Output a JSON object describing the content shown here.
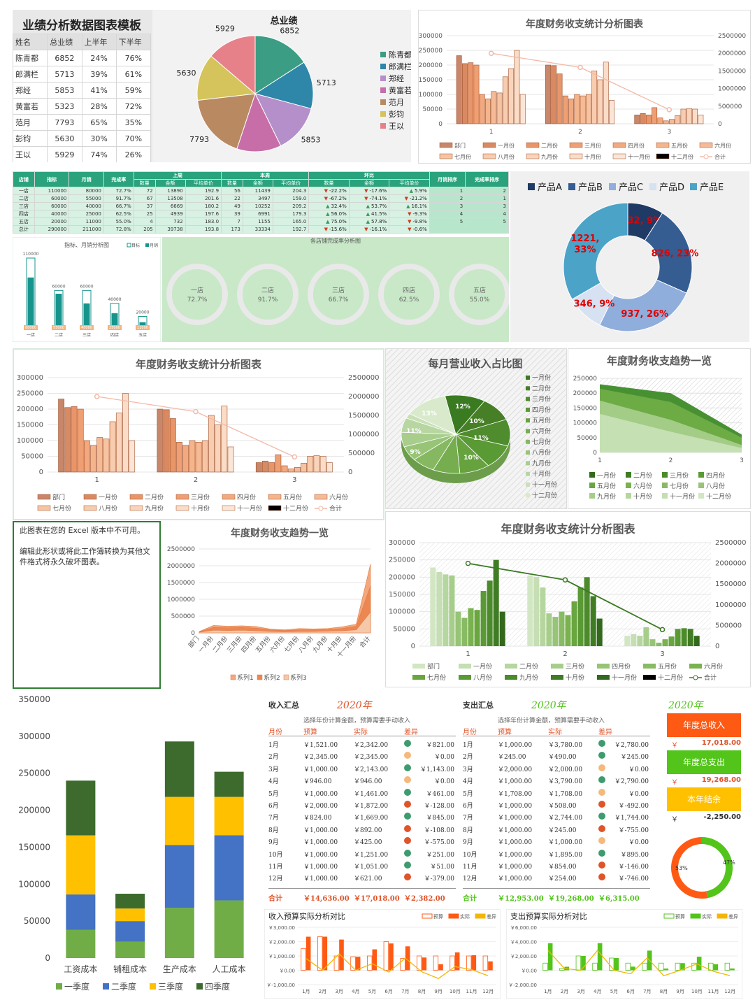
{
  "p1": {
    "title": "业绩分析数据图表模板",
    "headers": [
      "姓名",
      "总业绩",
      "上半年",
      "下半年"
    ],
    "rows": [
      [
        "陈青都",
        "6852",
        "24%",
        "76%"
      ],
      [
        "郎满栏",
        "5713",
        "39%",
        "61%"
      ],
      [
        "郑经",
        "5853",
        "41%",
        "59%"
      ],
      [
        "黄富若",
        "5323",
        "28%",
        "72%"
      ],
      [
        "范月",
        "7793",
        "65%",
        "35%"
      ],
      [
        "彭钧",
        "5630",
        "30%",
        "70%"
      ],
      [
        "王以",
        "5929",
        "74%",
        "26%"
      ]
    ],
    "pie_title": "总业绩",
    "colors": [
      "#3a9d84",
      "#2e86a8",
      "#b58fc9",
      "#c76ea8",
      "#b98a62",
      "#d5c35c",
      "#e6818a"
    ]
  },
  "p2": {
    "title": "年度财务收支统计分析图表",
    "legend": [
      "部门",
      "一月份",
      "二月份",
      "三月份",
      "四月份",
      "五月份",
      "六月份",
      "七月份",
      "八月份",
      "九月份",
      "十月份",
      "十一月份",
      "十二月份",
      "合计"
    ],
    "yleft": [
      "0",
      "50000",
      "100000",
      "150000",
      "200000",
      "250000",
      "300000"
    ],
    "yright": [
      "0",
      "500000",
      "1000000",
      "1500000",
      "2000000",
      "2500000"
    ],
    "xcats": [
      "1",
      "2",
      "3"
    ]
  },
  "p3": {
    "head1": [
      "店铺",
      "指标",
      "月销",
      "完成率",
      "上周",
      "本周",
      "环比",
      "月销排序",
      "完成率排序"
    ],
    "head2": [
      "数量",
      "金额",
      "平均单价",
      "数量",
      "金额",
      "平均单价",
      "数量",
      "金额",
      "平均单价"
    ],
    "rows": [
      [
        "一店",
        "110000",
        "80000",
        "72.7%",
        "72",
        "13890",
        "192.9",
        "56",
        "11439",
        "204.3",
        "-22.2%",
        "-17.6%",
        "5.9%",
        "1",
        "2"
      ],
      [
        "二店",
        "60000",
        "55000",
        "91.7%",
        "67",
        "13508",
        "201.6",
        "22",
        "3497",
        "159.0",
        "-67.2%",
        "-74.1%",
        "-21.2%",
        "2",
        "1"
      ],
      [
        "三店",
        "60000",
        "40000",
        "66.7%",
        "37",
        "6669",
        "180.2",
        "49",
        "10252",
        "209.2",
        "32.4%",
        "53.7%",
        "16.1%",
        "3",
        "3"
      ],
      [
        "四店",
        "40000",
        "25000",
        "62.5%",
        "25",
        "4939",
        "197.6",
        "39",
        "6991",
        "179.3",
        "56.0%",
        "41.5%",
        "-9.3%",
        "4",
        "4"
      ],
      [
        "五店",
        "20000",
        "11000",
        "55.0%",
        "4",
        "732",
        "183.0",
        "7",
        "1155",
        "165.0",
        "75.0%",
        "57.8%",
        "-9.8%",
        "5",
        "5"
      ],
      [
        "总计",
        "290000",
        "211000",
        "72.8%",
        "205",
        "39738",
        "193.8",
        "173",
        "33334",
        "192.7",
        "-15.6%",
        "-16.1%",
        "-0.6%",
        "",
        ""
      ]
    ],
    "bar_title": "指标、月销分析图",
    "bar_legend": [
      "目标",
      "月销"
    ],
    "stores": [
      "一店",
      "二店",
      "三店",
      "四店",
      "五店"
    ],
    "targets": [
      "110000",
      "60000",
      "60000",
      "40000",
      "20000"
    ],
    "sales": [
      "80000",
      "55000",
      "40000",
      "25000",
      "11000"
    ],
    "ring_title": "各店铺完成率分析图",
    "rings": [
      {
        "name": "一店",
        "pct": "72.7%",
        "v": 0.727,
        "color": "#17958d"
      },
      {
        "name": "二店",
        "pct": "91.7%",
        "v": 0.917,
        "color": "#ee7d31"
      },
      {
        "name": "三店",
        "pct": "66.7%",
        "v": 0.667,
        "color": "#8ccc4a"
      },
      {
        "name": "四店",
        "pct": "62.5%",
        "v": 0.625,
        "color": "#19d4c9"
      },
      {
        "name": "五店",
        "pct": "55.0%",
        "v": 0.55,
        "color": "#17a2d8"
      }
    ]
  },
  "p4": {
    "legend": [
      "产品A",
      "产品B",
      "产品C",
      "产品D",
      "产品E"
    ],
    "colors": [
      "#1f3a64",
      "#355d91",
      "#8faedb",
      "#d6e1f1",
      "#4ba3c8"
    ],
    "values": [
      332,
      826,
      937,
      346,
      1221
    ],
    "labels": [
      "332, 9%",
      "826, 23%",
      "937, 26%",
      "346, 9%",
      "1221, 33%"
    ]
  },
  "p6": {
    "title": "每月营业收入占比图",
    "legend": [
      "一月份",
      "二月份",
      "三月份",
      "四月份",
      "五月份",
      "六月份",
      "七月份",
      "八月份",
      "九月份",
      "十月份",
      "十一月份",
      "十二月份"
    ],
    "labels": [
      "12%",
      "10%",
      "11%",
      "10%",
      "9%",
      "11%",
      "13%"
    ]
  },
  "p7": {
    "title": "年度财务收支趋势一览",
    "yleft": [
      "0",
      "50000",
      "100000",
      "150000",
      "200000",
      "250000"
    ],
    "xcats": [
      "1",
      "2",
      "3"
    ],
    "legend": [
      "一月份",
      "二月份",
      "三月份",
      "四月份",
      "五月份",
      "六月份",
      "七月份",
      "八月份",
      "九月份",
      "十月份",
      "十一月份",
      "十二月份"
    ]
  },
  "p8": {
    "msg1": "此图表在您的 Excel 版本中不可用。",
    "msg2": "编辑此形状或将此工作簿转换为其他文件格式将永久破坏图表。"
  },
  "p9": {
    "title": "年度财务收支趋势一览",
    "yleft": [
      "0",
      "500000",
      "1000000",
      "1500000",
      "2000000",
      "2500000"
    ],
    "xcats": [
      "部门",
      "一月份",
      "二月份",
      "三月份",
      "四月份",
      "五月份",
      "六月份",
      "七月份",
      "八月份",
      "九月份",
      "十月份",
      "十一月份",
      "合计"
    ],
    "legend": [
      "系列1",
      "系列2",
      "系列3"
    ]
  },
  "p10": {
    "title": "年度财务收支统计分析图表"
  },
  "p11": {
    "cats": [
      "工资成本",
      "铺租成本",
      "生产成本",
      "人工成本"
    ],
    "series": [
      {
        "name": "一季度",
        "color": "#70ad47",
        "values": [
          38000,
          22000,
          68000,
          78000
        ]
      },
      {
        "name": "二季度",
        "color": "#4472c4",
        "values": [
          48000,
          28000,
          85000,
          88000
        ]
      },
      {
        "name": "三季度",
        "color": "#ffc000",
        "values": [
          80000,
          17000,
          65000,
          52000
        ]
      },
      {
        "name": "四季度",
        "color": "#3d6b2e",
        "values": [
          74000,
          20000,
          75000,
          34000
        ]
      }
    ],
    "yticks": [
      "0",
      "50000",
      "100000",
      "150000",
      "200000",
      "250000",
      "300000",
      "350000"
    ]
  },
  "p12": {
    "in_title": "收入汇总",
    "out_title": "支出汇总",
    "year": "2020年",
    "note": "选择年份计算金额，预算需要手动收入",
    "headers": [
      "月份",
      "预算",
      "实际",
      "差异"
    ],
    "months": [
      "1月",
      "2月",
      "3月",
      "4月",
      "5月",
      "6月",
      "7月",
      "8月",
      "9月",
      "10月",
      "11月",
      "12月"
    ],
    "income": [
      [
        "￥1,521.00",
        "￥2,342.00",
        "￥821.00",
        "g"
      ],
      [
        "￥2,345.00",
        "￥2,345.00",
        "￥0.00",
        "y"
      ],
      [
        "￥1,000.00",
        "￥2,143.00",
        "￥1,143.00",
        "g"
      ],
      [
        "￥946.00",
        "￥946.00",
        "￥0.00",
        "y"
      ],
      [
        "￥1,000.00",
        "￥1,461.00",
        "￥461.00",
        "g"
      ],
      [
        "￥2,000.00",
        "￥1,872.00",
        "￥-128.00",
        "r"
      ],
      [
        "￥824.00",
        "￥1,669.00",
        "￥845.00",
        "g"
      ],
      [
        "￥1,000.00",
        "￥892.00",
        "￥-108.00",
        "r"
      ],
      [
        "￥1,000.00",
        "￥425.00",
        "￥-575.00",
        "r"
      ],
      [
        "￥1,000.00",
        "￥1,251.00",
        "￥251.00",
        "g"
      ],
      [
        "￥1,000.00",
        "￥1,051.00",
        "￥51.00",
        "g"
      ],
      [
        "￥1,000.00",
        "￥621.00",
        "￥-379.00",
        "r"
      ]
    ],
    "in_total": [
      "合计",
      "￥14,636.00",
      "￥17,018.00",
      "￥2,382.00"
    ],
    "expense": [
      [
        "￥1,000.00",
        "￥3,780.00",
        "￥2,780.00",
        "g"
      ],
      [
        "￥245.00",
        "￥490.00",
        "￥245.00",
        "g"
      ],
      [
        "￥2,000.00",
        "￥2,000.00",
        "￥0.00",
        "y"
      ],
      [
        "￥1,000.00",
        "￥3,790.00",
        "￥2,790.00",
        "g"
      ],
      [
        "￥1,708.00",
        "￥1,708.00",
        "￥0.00",
        "y"
      ],
      [
        "￥1,000.00",
        "￥508.00",
        "￥-492.00",
        "r"
      ],
      [
        "￥1,000.00",
        "￥2,744.00",
        "￥1,744.00",
        "g"
      ],
      [
        "￥1,000.00",
        "￥245.00",
        "￥-755.00",
        "r"
      ],
      [
        "￥1,000.00",
        "￥1,000.00",
        "￥0.00",
        "y"
      ],
      [
        "￥1,000.00",
        "￥1,895.00",
        "￥895.00",
        "g"
      ],
      [
        "￥1,000.00",
        "￥854.00",
        "￥-146.00",
        "r"
      ],
      [
        "￥1,000.00",
        "￥254.00",
        "￥-746.00",
        "r"
      ]
    ],
    "out_total": [
      "合计",
      "￥12,953.00",
      "￥19,268.00",
      "￥6,315.00"
    ],
    "boxes": [
      {
        "label": "年度总收入",
        "value": "17,018.00",
        "color": "#ff5a14"
      },
      {
        "label": "年度总支出",
        "value": "19,268.00",
        "color": "#52c41a"
      },
      {
        "label": "本年结余",
        "value": "-2,250.00",
        "color": "#ffc000"
      }
    ],
    "yen": "￥",
    "donut": [
      "53%",
      "47%"
    ],
    "c1_title": "收入预算实际分析对比",
    "c2_title": "支出预算实际分析对比",
    "c_legend": [
      "预算",
      "实际",
      "差异"
    ],
    "c1_y": [
      "￥-1,000.00",
      "￥0.00",
      "￥1,000.00",
      "￥2,000.00",
      "￥3,000.00"
    ],
    "c2_y": [
      "￥-2,000.00",
      "￥0.00",
      "￥2,000.00",
      "￥4,000.00",
      "￥6,000.00"
    ]
  }
}
